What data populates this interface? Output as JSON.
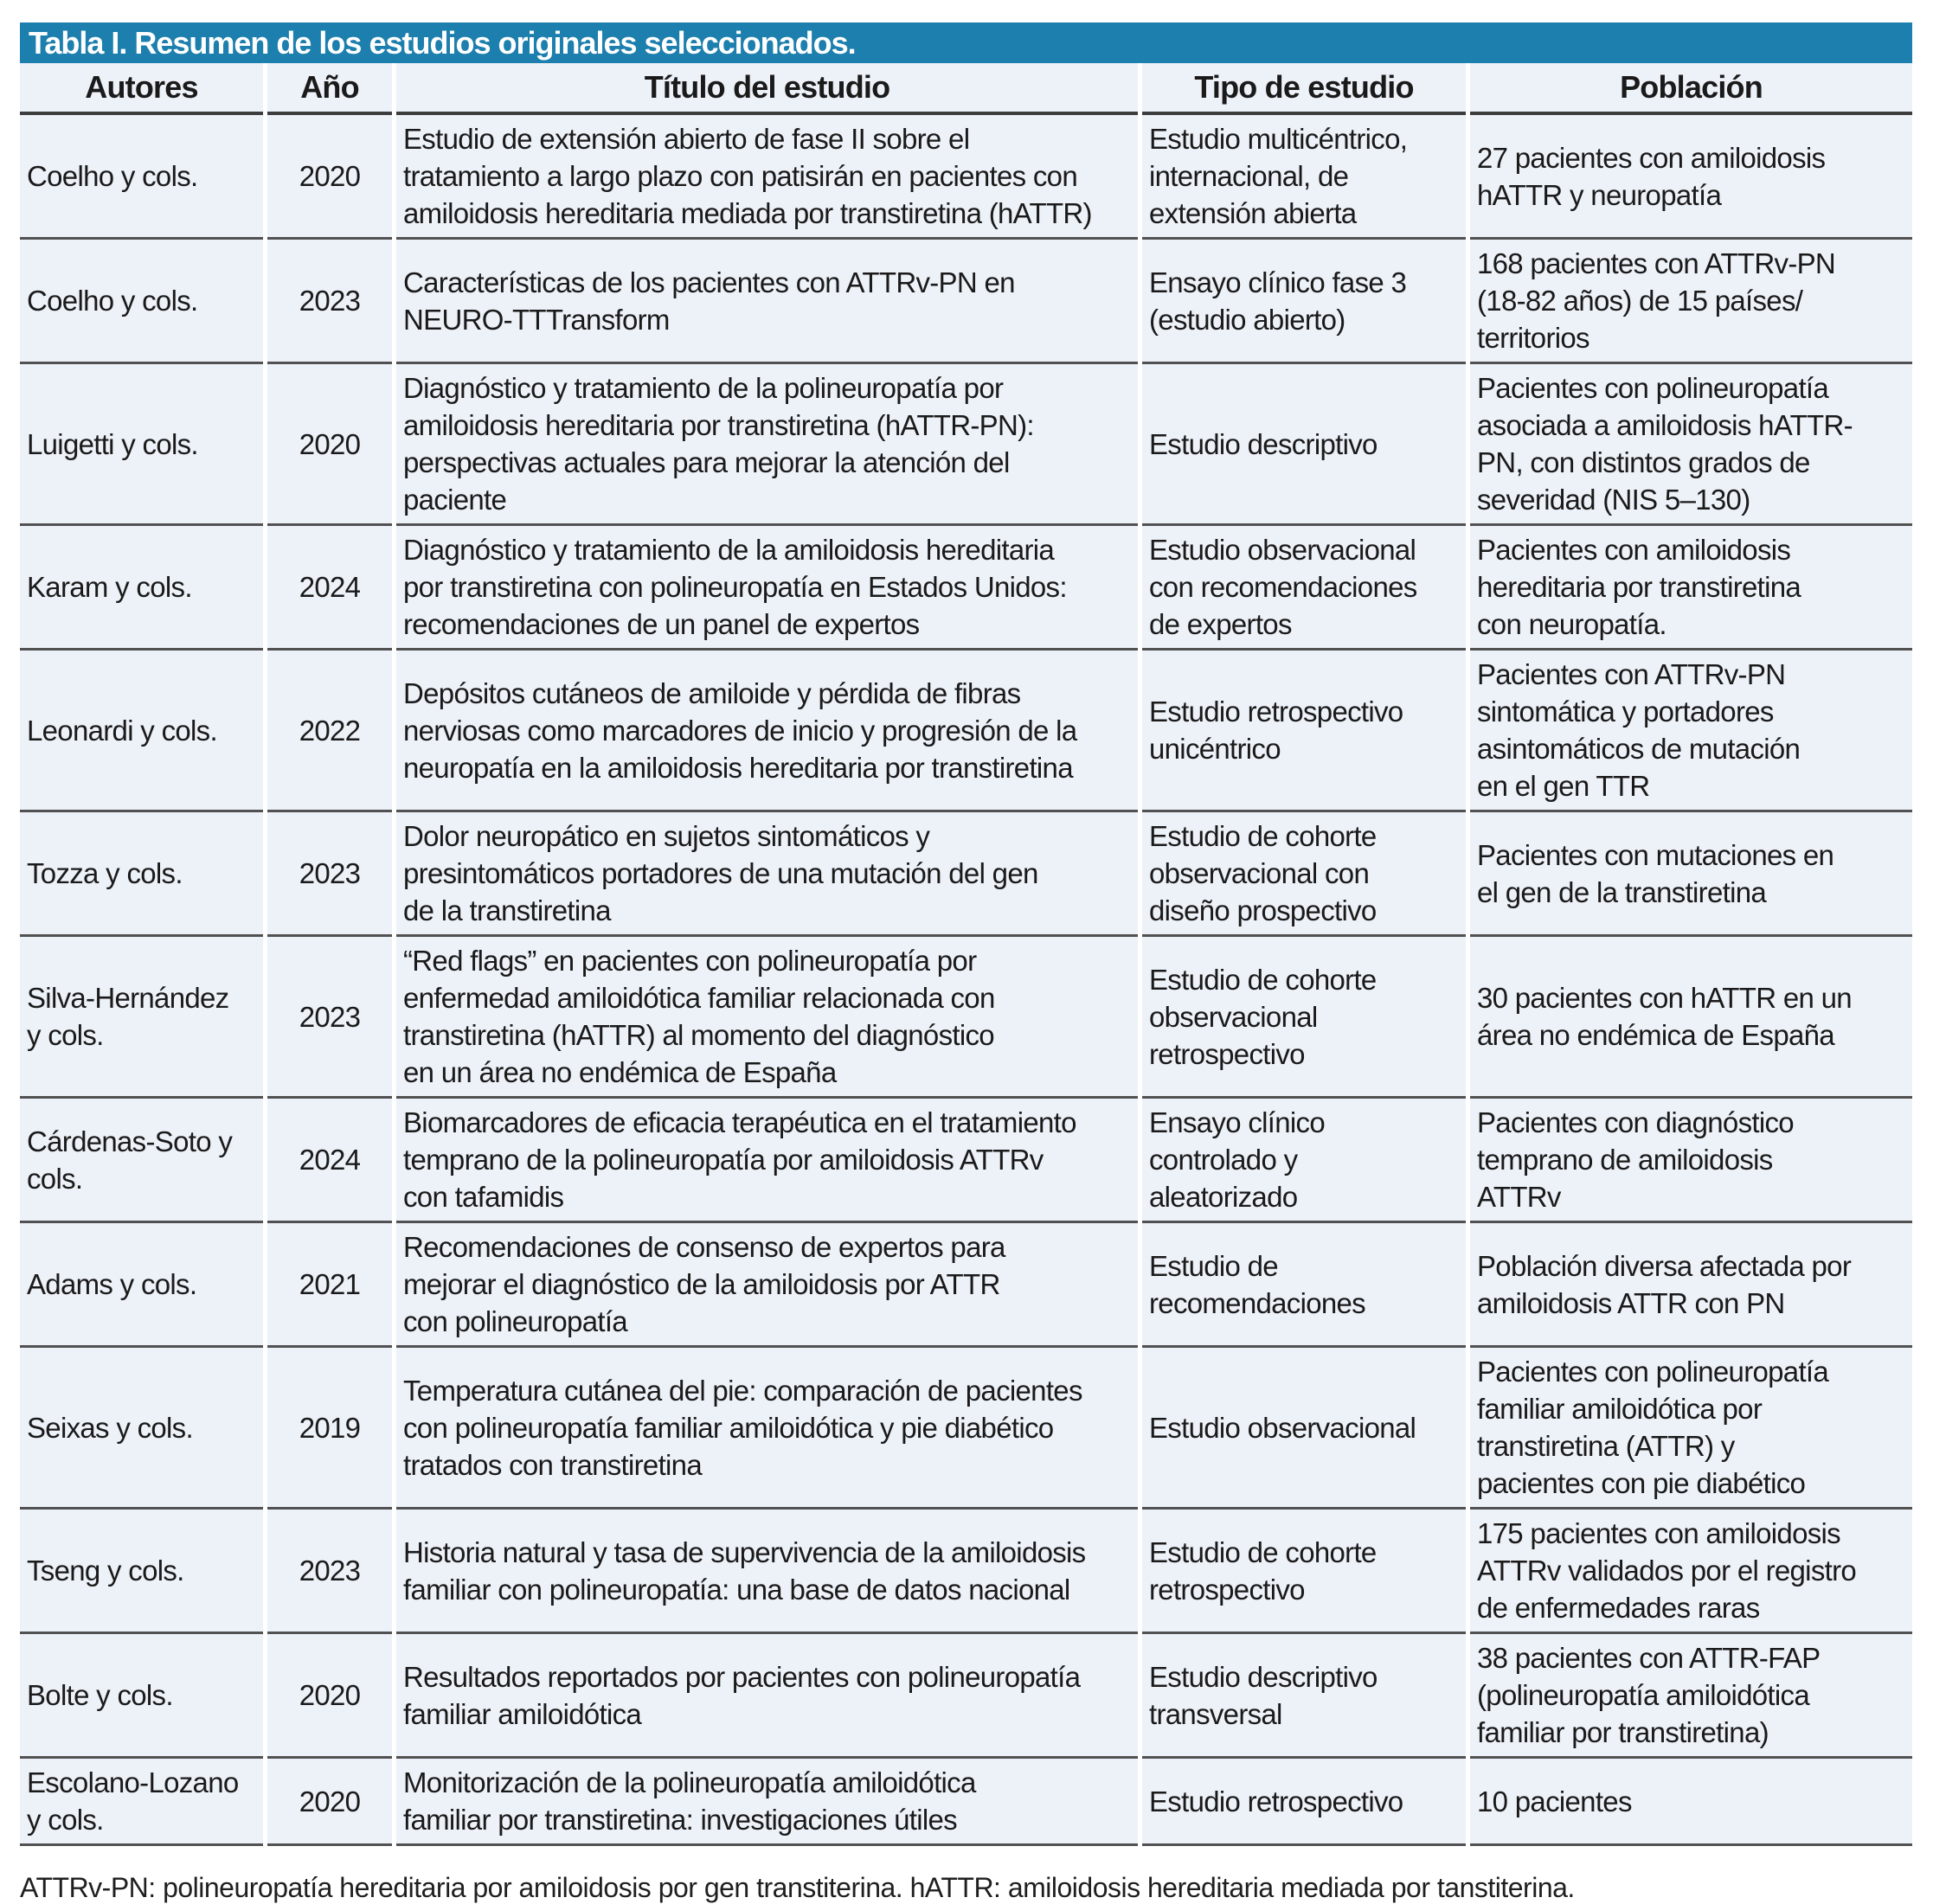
{
  "colors": {
    "accent": "#1d7fad",
    "row_bg": "#edf1f8",
    "rule": "#515151",
    "text": "#1a1a1a"
  },
  "table": {
    "title": "Tabla I. Resumen de los estudios originales seleccionados.",
    "columns": [
      "Autores",
      "Año",
      "Título del estudio",
      "Tipo de estudio",
      "Población"
    ],
    "rows": [
      {
        "autores": "Coelho y cols.",
        "ano": "2020",
        "titulo": "Estudio de extensión abierto de fase II sobre el\ntratamiento a largo plazo con patisirán en pacientes con\namiloidosis hereditaria mediada por transtiretina (hATTR)",
        "tipo": "Estudio multicéntrico,\ninternacional, de\nextensión abierta",
        "poblacion": "27 pacientes con amiloidosis\nhATTR y neuropatía"
      },
      {
        "autores": "Coelho y cols.",
        "ano": "2023",
        "titulo": "Características de los pacientes con ATTRv-PN en\nNEURO-TTTransform",
        "tipo": "Ensayo clínico fase 3\n(estudio abierto)",
        "poblacion": "168 pacientes con ATTRv-PN\n(18-82 años) de 15 países/\nterritorios"
      },
      {
        "autores": "Luigetti y cols.",
        "ano": "2020",
        "titulo": "Diagnóstico y tratamiento de la polineuropatía por\namiloidosis hereditaria por transtiretina (hATTR-PN):\nperspectivas actuales para mejorar la atención del\npaciente",
        "tipo": "Estudio descriptivo",
        "poblacion": "Pacientes con polineuropatía\nasociada a amiloidosis hATTR-\nPN, con distintos grados de\nseveridad (NIS 5–130)"
      },
      {
        "autores": "Karam y cols.",
        "ano": "2024",
        "titulo": "Diagnóstico y tratamiento de la amiloidosis hereditaria\npor transtiretina con polineuropatía en Estados Unidos:\nrecomendaciones de un panel de expertos",
        "tipo": "Estudio observacional\ncon recomendaciones\nde expertos",
        "poblacion": "Pacientes con amiloidosis\nhereditaria por transtiretina\ncon neuropatía."
      },
      {
        "autores": "Leonardi y cols.",
        "ano": "2022",
        "titulo": "Depósitos cutáneos de amiloide y pérdida de fibras\nnerviosas como marcadores de inicio y progresión de la\nneuropatía en la amiloidosis hereditaria por transtiretina",
        "tipo": "Estudio retrospectivo\nunicéntrico",
        "poblacion": "Pacientes con ATTRv-PN\nsintomática y portadores\nasintomáticos de mutación\nen el gen TTR"
      },
      {
        "autores": "Tozza y cols.",
        "ano": "2023",
        "titulo": "Dolor neuropático en sujetos sintomáticos y\npresintomáticos portadores de una mutación del gen\nde la transtiretina",
        "tipo": "Estudio de cohorte\nobservacional con\ndiseño prospectivo",
        "poblacion": "Pacientes con mutaciones en\nel gen de la transtiretina"
      },
      {
        "autores": "Silva-Hernández\ny cols.",
        "ano": "2023",
        "titulo": "“Red flags” en pacientes con polineuropatía por\nenfermedad amiloidótica familiar relacionada con\ntranstiretina (hATTR) al momento del diagnóstico\nen un área no endémica de España",
        "tipo": "Estudio de cohorte\nobservacional\nretrospectivo",
        "poblacion": "30 pacientes con hATTR en un\nárea no endémica de España"
      },
      {
        "autores": "Cárdenas-Soto y\ncols.",
        "ano": "2024",
        "titulo": "Biomarcadores de eficacia terapéutica en el tratamiento\ntemprano de la polineuropatía por amiloidosis ATTRv\ncon tafamidis",
        "tipo": "Ensayo clínico\ncontrolado y\naleatorizado",
        "poblacion": "Pacientes con diagnóstico\ntemprano de amiloidosis\nATTRv"
      },
      {
        "autores": "Adams y cols.",
        "ano": "2021",
        "titulo": "Recomendaciones de consenso de expertos para\nmejorar el diagnóstico de la amiloidosis por ATTR\ncon polineuropatía",
        "tipo": "Estudio de\nrecomendaciones",
        "poblacion": "Población diversa afectada por\namiloidosis ATTR con PN"
      },
      {
        "autores": "Seixas y cols.",
        "ano": "2019",
        "titulo": "Temperatura cutánea del pie: comparación de pacientes\ncon polineuropatía familiar amiloidótica y pie diabético\ntratados con transtiretina",
        "tipo": "Estudio observacional",
        "poblacion": "Pacientes con polineuropatía\nfamiliar amiloidótica por\ntranstiretina (ATTR) y\npacientes con pie diabético"
      },
      {
        "autores": "Tseng y cols.",
        "ano": "2023",
        "titulo": "Historia natural y tasa de supervivencia de la amiloidosis\nfamiliar con polineuropatía: una base de datos nacional",
        "tipo": "Estudio de cohorte\nretrospectivo",
        "poblacion": "175 pacientes con amiloidosis\nATTRv validados por el registro\nde enfermedades raras"
      },
      {
        "autores": "Bolte y cols.",
        "ano": "2020",
        "titulo": "Resultados reportados por pacientes con polineuropatía\nfamiliar amiloidótica",
        "tipo": "Estudio descriptivo\ntransversal",
        "poblacion": "38 pacientes con ATTR-FAP\n(polineuropatía amiloidótica\nfamiliar por transtiretina)"
      },
      {
        "autores": "Escolano-Lozano\ny cols.",
        "ano": "2020",
        "titulo": "Monitorización de la polineuropatía amiloidótica\nfamiliar por transtiretina: investigaciones útiles",
        "tipo": "Estudio retrospectivo",
        "poblacion": "10 pacientes"
      }
    ],
    "footnote": "ATTRv-PN: polineuropatía hereditaria por amiloidosis por gen transtiterina. hATTR: amiloidosis hereditaria mediada por tanstiterina."
  }
}
